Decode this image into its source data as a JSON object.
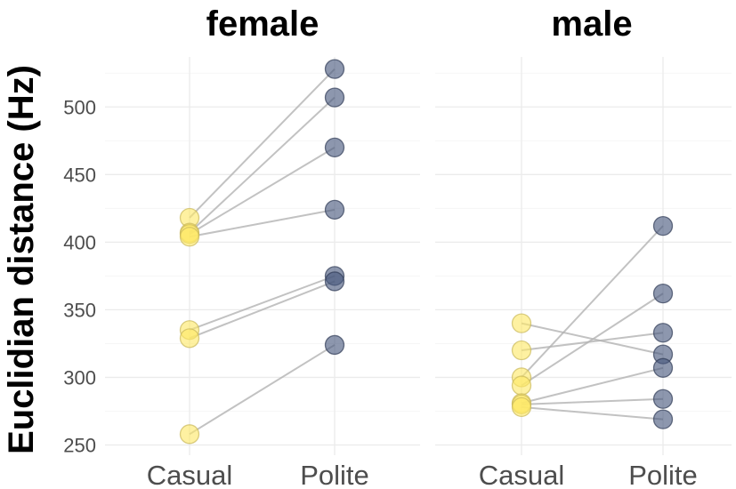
{
  "chart_data": {
    "type": "scatter",
    "ylabel": "Euclidian distance (Hz)",
    "xlabel": "",
    "categories": [
      "Casual",
      "Polite"
    ],
    "ylim": [
      245,
      532
    ],
    "yticks": [
      "250",
      "300",
      "350",
      "400",
      "450",
      "500"
    ],
    "grid": true,
    "colors": {
      "Casual": "#fde968",
      "Polite": "#47577c"
    },
    "facets": [
      {
        "title": "female",
        "pairs": [
          {
            "Casual": 418,
            "Polite": 528
          },
          {
            "Casual": 407,
            "Polite": 507
          },
          {
            "Casual": 406,
            "Polite": 470
          },
          {
            "Casual": 404,
            "Polite": 424
          },
          {
            "Casual": 335,
            "Polite": 375
          },
          {
            "Casual": 329,
            "Polite": 371
          },
          {
            "Casual": 258,
            "Polite": 324
          }
        ]
      },
      {
        "title": "male",
        "pairs": [
          {
            "Casual": 340,
            "Polite": 317
          },
          {
            "Casual": 320,
            "Polite": 333
          },
          {
            "Casual": 300,
            "Polite": 412
          },
          {
            "Casual": 294,
            "Polite": 362
          },
          {
            "Casual": 281,
            "Polite": 307
          },
          {
            "Casual": 280,
            "Polite": 284
          },
          {
            "Casual": 278,
            "Polite": 269
          }
        ]
      }
    ]
  }
}
